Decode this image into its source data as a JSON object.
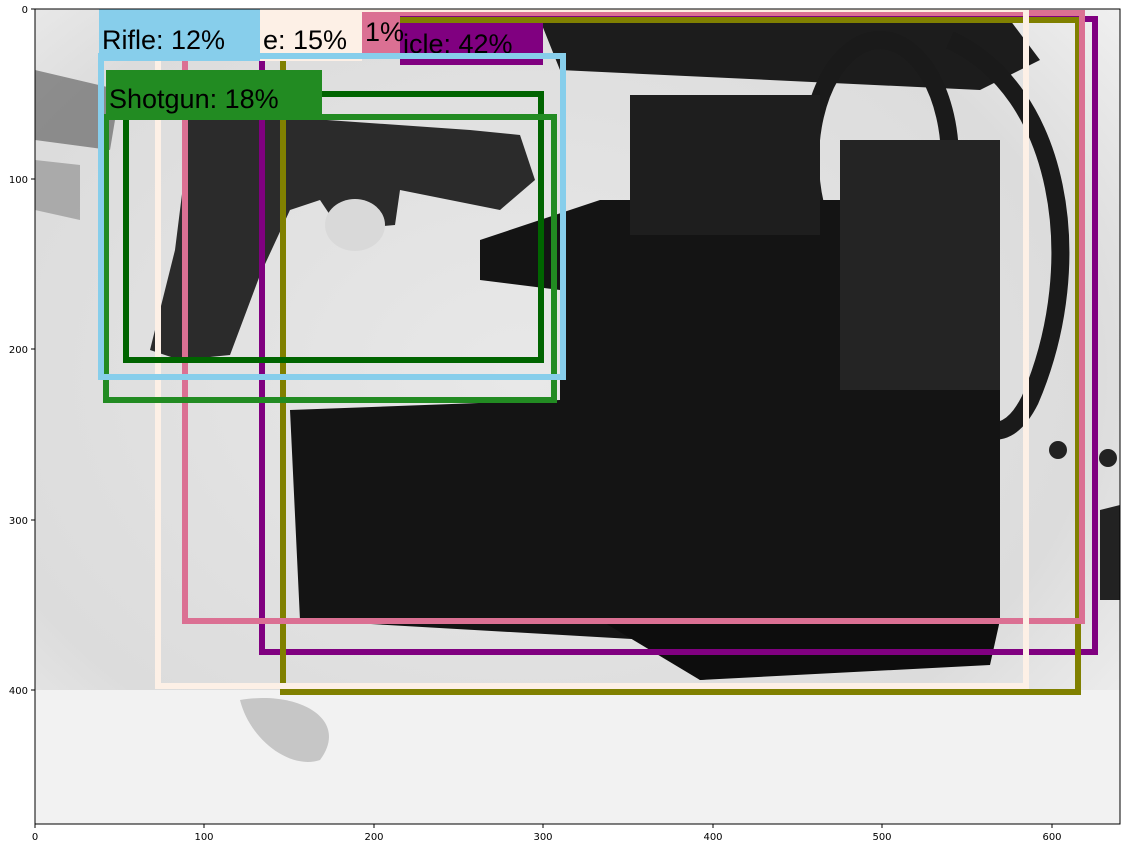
{
  "figure": {
    "x_ticks": [
      "0",
      "100",
      "200",
      "300",
      "400",
      "500",
      "600"
    ],
    "y_ticks": [
      "0",
      "100",
      "200",
      "300",
      "400"
    ],
    "background": "#ffffff",
    "axes_frame_color": "#000000"
  },
  "image": {
    "description_kind": "x-ray baggage scan",
    "scene_objects": [
      "handgun",
      "bag-contents",
      "strap-coil"
    ]
  },
  "detections": [
    {
      "id": "det-rifle",
      "label": "Rifle: 12%",
      "color": "#87ceeb",
      "text_color": "#000000"
    },
    {
      "id": "det-15",
      "label": "e: 15%",
      "color": "#fdf0e6",
      "text_color": "#000000"
    },
    {
      "id": "det-pink",
      "label": "1%",
      "color": "#db7093",
      "text_color": "#000000"
    },
    {
      "id": "det-vehicle",
      "label": "icle: 42%",
      "color": "#800080",
      "text_color": "#000000"
    },
    {
      "id": "det-olive",
      "label": "",
      "color": "#808000",
      "text_color": "#000000"
    },
    {
      "id": "det-shotgun",
      "label": "Shotgun: 18%",
      "color": "#228b22",
      "text_color": "#000000"
    },
    {
      "id": "det-darkgreen",
      "label": "",
      "color": "#006400",
      "text_color": "#000000"
    }
  ]
}
